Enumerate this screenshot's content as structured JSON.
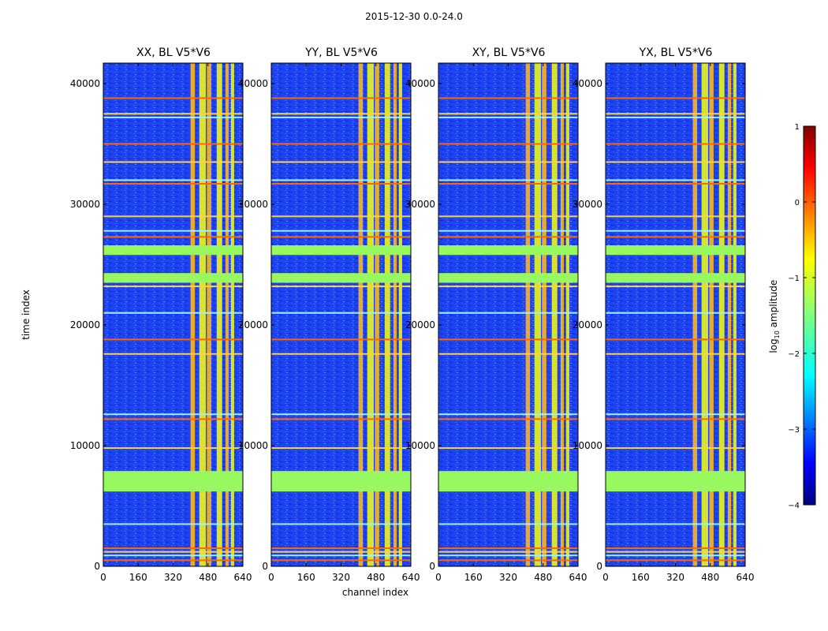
{
  "suptitle": "2015-12-30 0.0-24.0",
  "chart_data": {
    "type": "heatmap",
    "xlabel": "channel index",
    "ylabel": "time index",
    "xlim": [
      0,
      640
    ],
    "ylim": [
      0,
      41700
    ],
    "xticks": [
      "0",
      "160",
      "320",
      "480",
      "640"
    ],
    "yticks": [
      "0",
      "10000",
      "20000",
      "30000",
      "40000"
    ],
    "xtick_values": [
      0,
      160,
      320,
      480,
      640
    ],
    "ytick_values": [
      0,
      10000,
      20000,
      30000,
      40000
    ],
    "panels": [
      {
        "title": "XX, BL V5*V6"
      },
      {
        "title": "YY, BL V5*V6"
      },
      {
        "title": "XY, BL V5*V6"
      },
      {
        "title": "YX, BL V5*V6"
      }
    ],
    "colorbar": {
      "label": "log10 amplitude",
      "label_main": "log",
      "label_sub": "10",
      "label_rest": " amplitude",
      "range": [
        -4,
        1
      ],
      "ticks": [
        "1",
        "0",
        "−1",
        "−2",
        "−3",
        "−4"
      ],
      "tick_values": [
        1,
        0,
        -1,
        -2,
        -3,
        -4
      ],
      "colormap": "jet"
    },
    "flagged_time_bands": [
      [
        6200,
        7900
      ],
      [
        23500,
        24300
      ],
      [
        25800,
        26600
      ]
    ],
    "horizontal_line_times": [
      500,
      900,
      1200,
      1500,
      3500,
      9800,
      12200,
      12600,
      17600,
      18800,
      21000,
      23200,
      27300,
      27800,
      29000,
      31700,
      32000,
      33500,
      35000,
      37200,
      37500,
      38800
    ],
    "bright_channel_bands": [
      [
        400,
        420
      ],
      [
        440,
        470
      ],
      [
        475,
        495
      ],
      [
        520,
        545
      ],
      [
        560,
        575
      ],
      [
        585,
        600
      ]
    ]
  }
}
